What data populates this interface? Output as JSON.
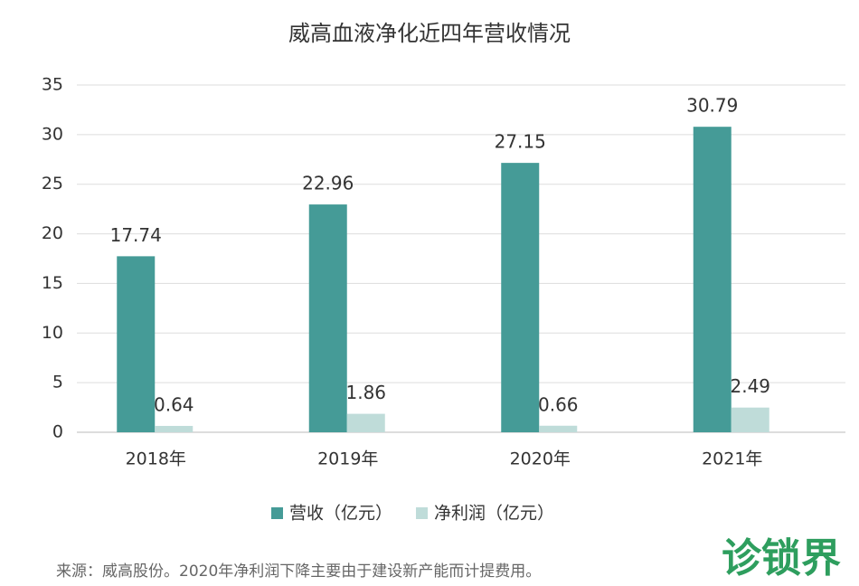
{
  "chart_data": {
    "type": "bar",
    "title": "威高血液净化近四年营收情况",
    "categories": [
      "2018年",
      "2019年",
      "2020年",
      "2021年"
    ],
    "series": [
      {
        "name": "营收（亿元）",
        "color": "#459b97",
        "values": [
          17.74,
          22.96,
          27.15,
          30.79
        ]
      },
      {
        "name": "净利润（亿元）",
        "color": "#bfdcd9",
        "values": [
          0.64,
          1.86,
          0.66,
          2.49
        ]
      }
    ],
    "ylim": [
      0,
      35
    ],
    "yticks": [
      0,
      5,
      10,
      15,
      20,
      25,
      30,
      35
    ],
    "grid": true,
    "legend": "bottom",
    "source": "来源：威高股份。2020年净利润下降主要由于建设新产能而计提费用。",
    "watermark": "诊锁界"
  }
}
